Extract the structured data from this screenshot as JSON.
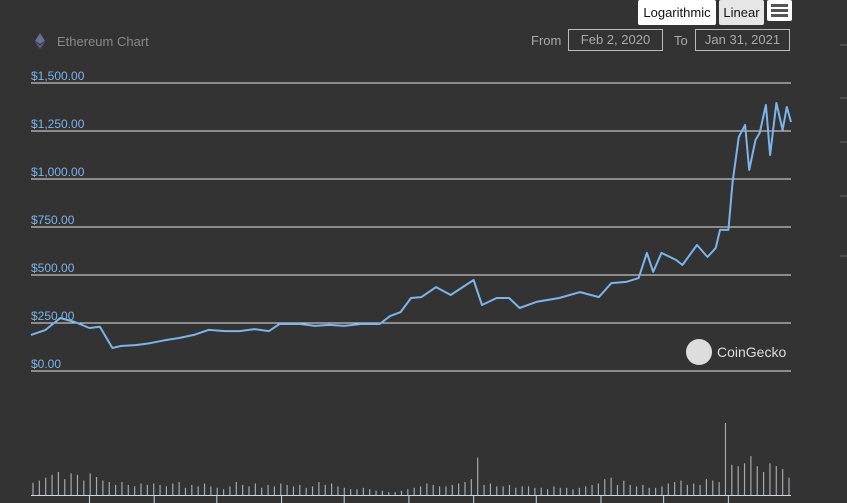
{
  "toolbar": {
    "log_label": "Logarithmic",
    "linear_label": "Linear",
    "selected_scale": "Linear"
  },
  "header": {
    "title": "Ethereum Chart",
    "icon": "ethereum-icon",
    "from_label": "From",
    "from_value": "Feb 2, 2020",
    "to_label": "To",
    "to_value": "Jan 31, 2021"
  },
  "watermark": "CoinGecko",
  "chart_data": {
    "type": "line",
    "title": "",
    "ylim": [
      0,
      1500
    ],
    "scale": "linear",
    "grid": true,
    "y_ticks": [
      "$0.00",
      "$250.00",
      "$500.00",
      "$750.00",
      "$1,000.00",
      "$1,250.00",
      "$1,500.00"
    ],
    "line_color": "#7cb5ec",
    "x_range": [
      "2020-02-02",
      "2021-01-31"
    ],
    "series": [
      {
        "points": [
          [
            "2020-02-02",
            188
          ],
          [
            "2020-02-09",
            214
          ],
          [
            "2020-02-16",
            276
          ],
          [
            "2020-02-23",
            255
          ],
          [
            "2020-03-01",
            224
          ],
          [
            "2020-03-06",
            230
          ],
          [
            "2020-03-12",
            120
          ],
          [
            "2020-03-16",
            130
          ],
          [
            "2020-03-23",
            135
          ],
          [
            "2020-03-30",
            145
          ],
          [
            "2020-04-06",
            160
          ],
          [
            "2020-04-13",
            172
          ],
          [
            "2020-04-20",
            188
          ],
          [
            "2020-04-27",
            214
          ],
          [
            "2020-05-05",
            208
          ],
          [
            "2020-05-12",
            208
          ],
          [
            "2020-05-19",
            218
          ],
          [
            "2020-05-26",
            208
          ],
          [
            "2020-05-31",
            245
          ],
          [
            "2020-06-10",
            245
          ],
          [
            "2020-06-17",
            235
          ],
          [
            "2020-06-24",
            240
          ],
          [
            "2020-07-01",
            235
          ],
          [
            "2020-07-09",
            245
          ],
          [
            "2020-07-18",
            245
          ],
          [
            "2020-07-23",
            286
          ],
          [
            "2020-07-28",
            307
          ],
          [
            "2020-08-02",
            380
          ],
          [
            "2020-08-07",
            385
          ],
          [
            "2020-08-14",
            437
          ],
          [
            "2020-08-21",
            396
          ],
          [
            "2020-09-01",
            474
          ],
          [
            "2020-09-05",
            344
          ],
          [
            "2020-09-12",
            380
          ],
          [
            "2020-09-18",
            380
          ],
          [
            "2020-09-23",
            328
          ],
          [
            "2020-10-01",
            360
          ],
          [
            "2020-10-12",
            380
          ],
          [
            "2020-10-22",
            411
          ],
          [
            "2020-10-31",
            385
          ],
          [
            "2020-11-06",
            458
          ],
          [
            "2020-11-13",
            464
          ],
          [
            "2020-11-19",
            484
          ],
          [
            "2020-11-23",
            615
          ],
          [
            "2020-11-26",
            516
          ],
          [
            "2020-11-30",
            615
          ],
          [
            "2020-12-07",
            578
          ],
          [
            "2020-12-10",
            552
          ],
          [
            "2020-12-17",
            656
          ],
          [
            "2020-12-22",
            594
          ],
          [
            "2020-12-26",
            641
          ],
          [
            "2020-12-28",
            735
          ],
          [
            "2021-01-01",
            735
          ],
          [
            "2021-01-03",
            980
          ],
          [
            "2021-01-06",
            1219
          ],
          [
            "2021-01-09",
            1282
          ],
          [
            "2021-01-11",
            1047
          ],
          [
            "2021-01-14",
            1203
          ],
          [
            "2021-01-16",
            1240
          ],
          [
            "2021-01-19",
            1386
          ],
          [
            "2021-01-21",
            1125
          ],
          [
            "2021-01-24",
            1396
          ],
          [
            "2021-01-27",
            1255
          ],
          [
            "2021-01-29",
            1375
          ],
          [
            "2021-01-31",
            1297
          ]
        ]
      }
    ],
    "volume_relative": [
      17,
      20,
      24,
      28,
      32,
      22,
      30,
      28,
      20,
      30,
      25,
      20,
      18,
      14,
      18,
      14,
      12,
      16,
      14,
      16,
      14,
      12,
      16,
      18,
      10,
      14,
      12,
      16,
      12,
      10,
      8,
      12,
      18,
      14,
      12,
      16,
      10,
      14,
      12,
      16,
      14,
      12,
      14,
      10,
      12,
      18,
      14,
      16,
      12,
      10,
      8,
      8,
      10,
      8,
      6,
      6,
      4,
      4,
      6,
      8,
      10,
      12,
      16,
      14,
      12,
      12,
      14,
      16,
      18,
      22,
      52,
      14,
      16,
      12,
      12,
      14,
      10,
      12,
      12,
      10,
      10,
      8,
      12,
      10,
      10,
      8,
      10,
      12,
      14,
      16,
      22,
      24,
      14,
      20,
      14,
      12,
      14,
      10,
      10,
      12,
      16,
      18,
      20,
      14,
      16,
      14,
      22,
      20,
      18,
      100,
      42,
      40,
      44,
      54,
      40,
      32,
      44,
      40,
      36,
      24
    ]
  }
}
